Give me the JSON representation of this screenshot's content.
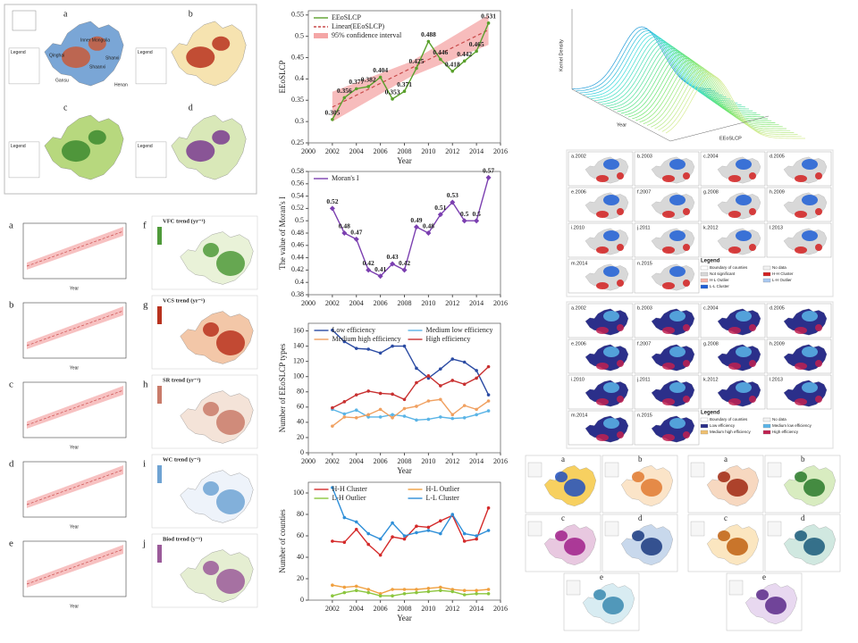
{
  "chart_data": [
    {
      "type": "line",
      "xlabel": "Year",
      "ylabel": "EEoSLCP",
      "x": [
        2002,
        2003,
        2004,
        2005,
        2006,
        2007,
        2008,
        2009,
        2010,
        2011,
        2012,
        2013,
        2014,
        2015
      ],
      "series": [
        {
          "name": "EEoSLCP",
          "color": "#5aa02c",
          "marker": "circle",
          "values": [
            0.305,
            0.356,
            0.377,
            0.382,
            0.404,
            0.353,
            0.371,
            0.425,
            0.488,
            0.446,
            0.418,
            0.442,
            0.465,
            0.531
          ]
        }
      ],
      "trend": {
        "name": "Linear(EEoSLCP)",
        "color": "#c84a4a",
        "x": [
          2002,
          2015
        ],
        "values": [
          0.334,
          0.515
        ]
      },
      "confidence_band": {
        "name": "95% confidence interval",
        "color": "#f4a6a6",
        "x": [
          2002,
          2008.5,
          2015
        ],
        "lower": [
          0.3,
          0.405,
          0.48
        ],
        "upper": [
          0.37,
          0.44,
          0.55
        ]
      },
      "data_labels": true,
      "legend": "upper left",
      "xlim": [
        2000,
        2016
      ],
      "xticks": [
        2000,
        2002,
        2004,
        2006,
        2008,
        2010,
        2012,
        2014,
        2016
      ],
      "ylim": [
        0.25,
        0.56
      ],
      "yticks": [
        0.25,
        0.3,
        0.35,
        0.4,
        0.45,
        0.5,
        0.55
      ]
    },
    {
      "type": "line",
      "ylabel": "The value of Moran's I",
      "x": [
        2002,
        2003,
        2004,
        2005,
        2006,
        2007,
        2008,
        2009,
        2010,
        2011,
        2012,
        2013,
        2014,
        2015
      ],
      "series": [
        {
          "name": "Moran's I",
          "color": "#7b3fb0",
          "marker": "diamond",
          "values": [
            0.52,
            0.48,
            0.47,
            0.42,
            0.41,
            0.43,
            0.42,
            0.49,
            0.48,
            0.51,
            0.53,
            0.5,
            0.5,
            0.57
          ]
        }
      ],
      "data_labels": true,
      "legend": "upper left",
      "xlim": [
        2000,
        2016
      ],
      "xticks": [
        2000,
        2002,
        2004,
        2006,
        2008,
        2010,
        2012,
        2014,
        2016
      ],
      "ylim": [
        0.38,
        0.58
      ],
      "yticks": [
        0.38,
        0.4,
        0.42,
        0.44,
        0.46,
        0.48,
        0.5,
        0.52,
        0.54,
        0.56,
        0.58
      ]
    },
    {
      "type": "line",
      "xlabel": "Year",
      "ylabel": "Number of EEoSLCP types",
      "x": [
        2002,
        2003,
        2004,
        2005,
        2006,
        2007,
        2008,
        2009,
        2010,
        2011,
        2012,
        2013,
        2014,
        2015
      ],
      "series": [
        {
          "name": "Low efficiency",
          "color": "#2b4ba3",
          "marker": "circle",
          "values": [
            161,
            146,
            137,
            136,
            131,
            140,
            140,
            111,
            98,
            110,
            123,
            119,
            108,
            76
          ]
        },
        {
          "name": "Medium low efficiency",
          "color": "#5ab4e6",
          "marker": "circle",
          "values": [
            57,
            51,
            56,
            47,
            47,
            50,
            48,
            43,
            44,
            47,
            45,
            46,
            50,
            55
          ]
        },
        {
          "name": "Medium high efficiency",
          "color": "#f0a060",
          "marker": "circle",
          "values": [
            35,
            47,
            46,
            50,
            57,
            46,
            58,
            61,
            68,
            70,
            50,
            62,
            57,
            68
          ]
        },
        {
          "name": "High efficiency",
          "color": "#c83030",
          "marker": "circle",
          "values": [
            59,
            67,
            76,
            81,
            78,
            77,
            70,
            92,
            101,
            88,
            95,
            90,
            98,
            113
          ]
        }
      ],
      "legend": "upper center",
      "xlim": [
        2000,
        2016
      ],
      "xticks": [
        2000,
        2002,
        2004,
        2006,
        2008,
        2010,
        2012,
        2014,
        2016
      ],
      "ylim": [
        0,
        170
      ],
      "yticks": [
        0,
        20,
        40,
        60,
        80,
        100,
        120,
        140,
        160
      ]
    },
    {
      "type": "line",
      "xlabel": "Year",
      "ylabel": "Number of counties",
      "x": [
        2002,
        2003,
        2004,
        2005,
        2006,
        2007,
        2008,
        2009,
        2010,
        2011,
        2012,
        2013,
        2014,
        2015
      ],
      "series": [
        {
          "name": "H-H Cluster",
          "color": "#d42a2a",
          "marker": "circle",
          "values": [
            55,
            54,
            66,
            52,
            42,
            59,
            57,
            69,
            68,
            74,
            79,
            55,
            57,
            86
          ]
        },
        {
          "name": "H-L Outlier",
          "color": "#f0a040",
          "marker": "circle",
          "values": [
            14,
            12,
            13,
            10,
            6,
            10,
            10,
            10,
            11,
            12,
            10,
            9,
            9,
            10
          ]
        },
        {
          "name": "L-H Outlier",
          "color": "#8cc63f",
          "marker": "circle",
          "values": [
            4,
            7,
            9,
            7,
            4,
            4,
            6,
            7,
            8,
            9,
            8,
            5,
            6,
            6
          ]
        },
        {
          "name": "L-L Cluster",
          "color": "#2f8fd8",
          "marker": "circle",
          "values": [
            105,
            77,
            73,
            62,
            57,
            72,
            60,
            63,
            65,
            62,
            80,
            62,
            60,
            65
          ]
        }
      ],
      "legend": "upper center",
      "xlim": [
        2000,
        2016
      ],
      "xticks": [
        2002,
        2004,
        2006,
        2008,
        2010,
        2012,
        2014,
        2016
      ],
      "ylim": [
        0,
        110
      ],
      "yticks": [
        0,
        20,
        40,
        60,
        80,
        100
      ]
    }
  ],
  "study_area": {
    "panels": [
      "a",
      "b",
      "c",
      "d"
    ],
    "places": [
      "Inner Mongolia",
      "Qinghai",
      "Gansu",
      "Shaanxi",
      "Shanxi",
      "Henan"
    ],
    "legend_title": "Legend"
  },
  "trend_charts": {
    "panels": [
      "a",
      "b",
      "c",
      "d",
      "e"
    ],
    "xlabel": "Year"
  },
  "trend_maps": {
    "panels": [
      "f",
      "g",
      "h",
      "i",
      "j"
    ],
    "titles": [
      "VFC trend (yr⁻¹)",
      "VCS trend (yr⁻¹)",
      "SR trend (yr⁻¹)",
      "WC trend (y⁻¹)",
      "Biod trend (y⁻¹)"
    ]
  },
  "kernel_density": {
    "z_label": "Kernel Density",
    "x_label": "EEoSLCP",
    "y_label": "Year"
  },
  "lisa_maps": {
    "panels": [
      "a.2002",
      "b.2003",
      "c.2004",
      "d.2005",
      "e.2006",
      "f.2007",
      "g.2008",
      "h.2009",
      "i.2010",
      "j.2011",
      "k.2012",
      "l.2013",
      "m.2014",
      "n.2015"
    ],
    "legend_title": "Legend",
    "legend": [
      "Boundary of counties",
      "No data",
      "Not significant",
      "H-H Cluster",
      "H-L Outlier",
      "L-H Outlier",
      "L-L Cluster"
    ]
  },
  "type_maps": {
    "panels": [
      "a.2002",
      "b.2003",
      "c.2004",
      "d.2005",
      "e.2006",
      "f.2007",
      "g.2008",
      "h.2009",
      "i.2010",
      "j.2011",
      "k.2012",
      "l.2013",
      "m.2014",
      "n.2015"
    ],
    "legend_title": "Legend",
    "legend": [
      "Boundary of counties",
      "No data",
      "Low efficiency",
      "Medium low efficiency",
      "Medium high efficiency",
      "High efficiency"
    ]
  },
  "factor_maps": {
    "left_panels": [
      "a",
      "b",
      "c",
      "d",
      "e"
    ],
    "right_panels": [
      "a",
      "b",
      "c",
      "d",
      "e"
    ]
  }
}
